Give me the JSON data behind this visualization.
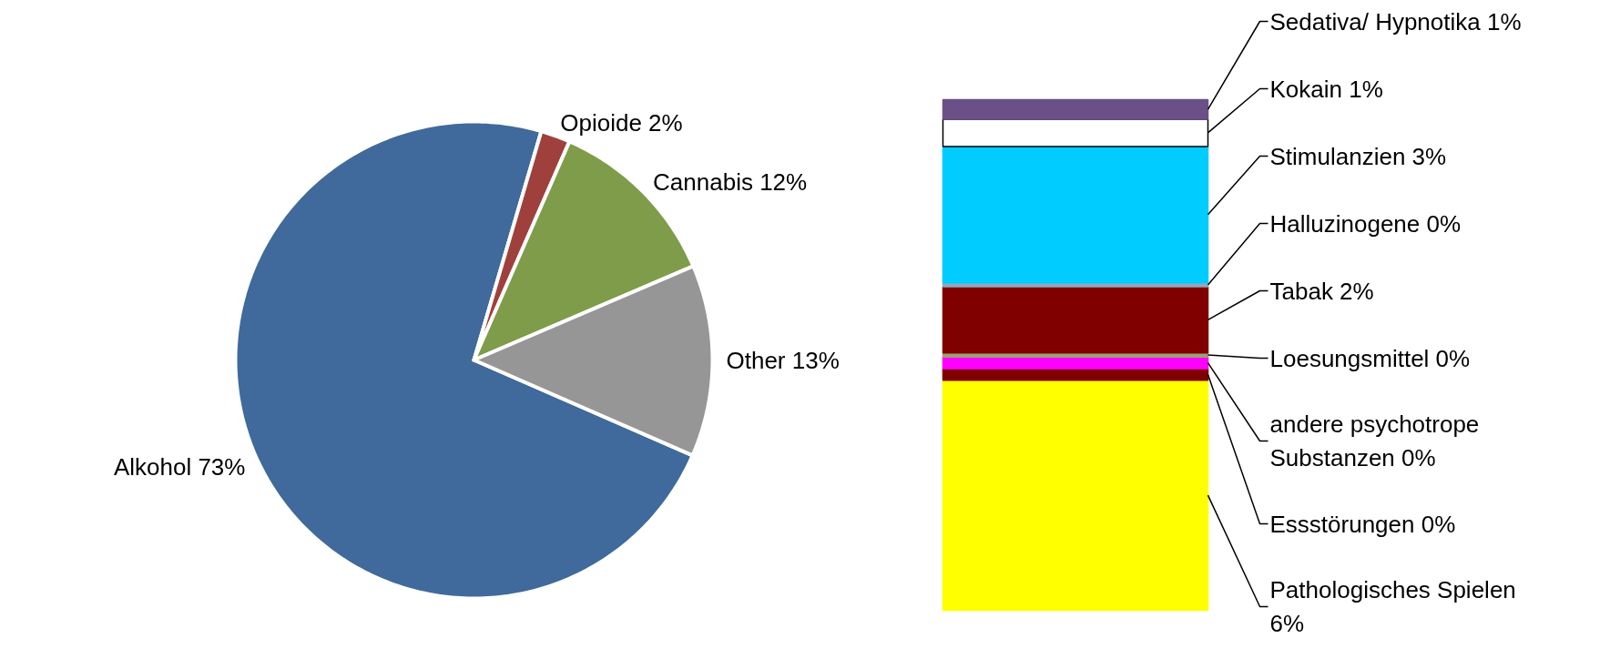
{
  "chart_data": [
    {
      "type": "pie",
      "categories": [
        "Alkohol",
        "Opioide",
        "Cannabis",
        "Other"
      ],
      "values": [
        73,
        2,
        12,
        13
      ],
      "value_labels": [
        "73%",
        "2%",
        "12%",
        "13%"
      ],
      "colors": [
        "#3f6a9b",
        "#a0403d",
        "#7f9c4a",
        "#969696"
      ]
    },
    {
      "type": "bar",
      "stacked": true,
      "categories": [
        null
      ],
      "series": [
        {
          "name": "Pathologisches Spielen",
          "color": "#ffff00",
          "values": [
            5.9
          ],
          "value_labels": [
            "6%"
          ]
        },
        {
          "name": "Essstörungen",
          "color": "#800000",
          "values": [
            0.3
          ],
          "value_labels": [
            "0%"
          ]
        },
        {
          "name": "andere psychotrope Substanzen",
          "color": "#ff00ff",
          "values": [
            0.3
          ],
          "value_labels": [
            "0%"
          ]
        },
        {
          "name": "Loesungsmittel",
          "color": "#a0a070",
          "values": [
            0.1
          ],
          "value_labels": [
            "0%"
          ]
        },
        {
          "name": "Tabak",
          "color": "#800000",
          "values": [
            1.7
          ],
          "value_labels": [
            "2%"
          ]
        },
        {
          "name": "Halluzinogene",
          "color": "#8fa8c0",
          "values": [
            0.1
          ],
          "value_labels": [
            "0%"
          ]
        },
        {
          "name": "Stimulanzien",
          "color": "#00ccff",
          "values": [
            3.5
          ],
          "value_labels": [
            "3%"
          ]
        },
        {
          "name": "Kokain",
          "color": "#ffffff",
          "values": [
            0.7
          ],
          "value_labels": [
            "1%"
          ]
        },
        {
          "name": "Sedativa/ Hypnotika",
          "color": "#6b5088",
          "values": [
            0.5
          ],
          "value_labels": [
            "1%"
          ]
        }
      ]
    }
  ]
}
